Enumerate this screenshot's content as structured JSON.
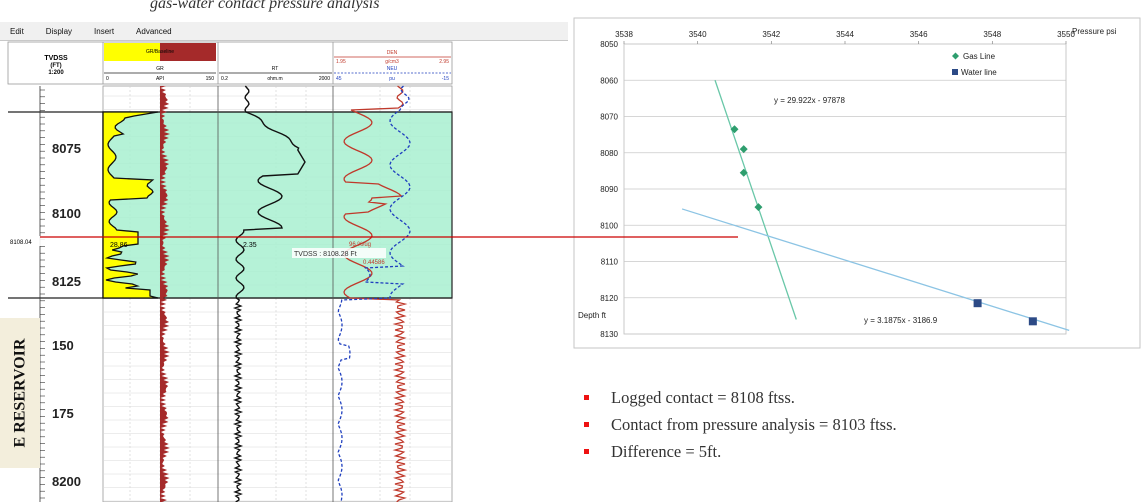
{
  "title_fragment": "gas-water contact pressure analysis",
  "menu": [
    "Edit",
    "Display",
    "Insert",
    "Advanced"
  ],
  "log_panel": {
    "header": {
      "depth_col": [
        "TVDSS",
        "(FT)",
        "1:200"
      ],
      "track1": {
        "name": "GR/Baseline",
        "curve": "GR",
        "min": "0",
        "unit": "API",
        "max": "150"
      },
      "track2": {
        "curve": "RT",
        "min": "0.2",
        "unit": "ohm.m",
        "max": "2000"
      },
      "track3": {
        "curve1": "DEN",
        "d_min": "1.95",
        "d_unit": "g/cm3",
        "d_max": "2.95",
        "curve2": "NEU",
        "n_min": "45",
        "n_unit": "pu",
        "n_max": "-15"
      }
    },
    "depth_labels": [
      "8075",
      "8100",
      "8125",
      "150",
      "175",
      "8200"
    ],
    "readouts": {
      "depth": "8108.04",
      "gr": "28.86",
      "rt": "2.35",
      "neu": "96 %/ug",
      "tvdss": "TVDSS : 8108.28 Ft",
      "den": "0.44586"
    },
    "reservoir_label": "E RESERVOIR",
    "colors": {
      "sand_fill": "#ffff00",
      "shale_fill": "#a52a2a",
      "zone_fill": "#a8f0d0",
      "gr_header": "#ffff00",
      "rt_curve": "#111111",
      "den_curve": "#c0392b",
      "neu_curve": "#1f3fbf",
      "contact_line": "#cc0000"
    }
  },
  "chart_data": {
    "type": "scatter",
    "title": "",
    "xlabel": "Pressure psi",
    "ylabel": "Depth ft",
    "xlim": [
      3538,
      3550
    ],
    "ylim": [
      8050,
      8130
    ],
    "y_inverted": true,
    "x_ticks": [
      "3538",
      "3540",
      "3542",
      "3544",
      "3546",
      "3548",
      "3550"
    ],
    "y_ticks": [
      "8050",
      "8060",
      "8070",
      "8080",
      "8090",
      "8100",
      "8110",
      "8120",
      "8130"
    ],
    "grid": true,
    "legend_position": "top-right",
    "series": [
      {
        "name": "Gas Line",
        "marker": "diamond",
        "color": "#2e9e6e",
        "points": [
          [
            3541.0,
            8073.5
          ],
          [
            3541.25,
            8079
          ],
          [
            3541.25,
            8085.5
          ],
          [
            3541.65,
            8095
          ]
        ],
        "trendline": {
          "label": "y = 29.922x - 97878",
          "y_from": 8060,
          "y_to": 8126,
          "color": "#69c7a8"
        }
      },
      {
        "name": "Water line",
        "marker": "square",
        "color": "#2c4a86",
        "points": [
          [
            3547.6,
            8121.5
          ],
          [
            3549.1,
            8126.5
          ]
        ],
        "trendline": {
          "label": "y = 3.1875x - 3186.9",
          "y_from": 8095.5,
          "y_to": 8129,
          "color": "#8cc4e4"
        }
      }
    ]
  },
  "bullets": [
    "Logged contact = 8108 ftss.",
    "Contact from pressure analysis = 8103 ftss.",
    "Difference = 5ft."
  ]
}
